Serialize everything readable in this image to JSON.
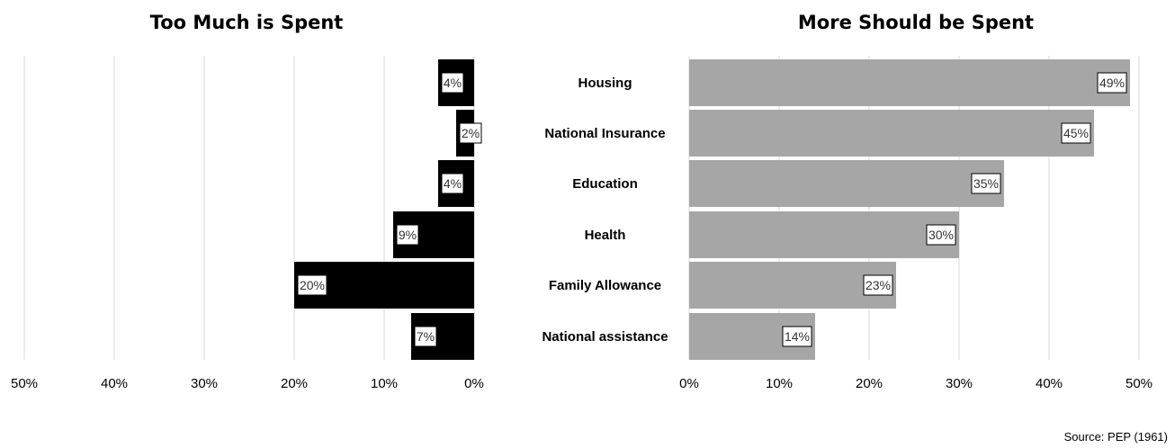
{
  "chart_data": [
    {
      "type": "bar",
      "orientation": "horizontal",
      "direction": "right-to-left",
      "title": "Too Much is Spent",
      "categories": [
        "Housing",
        "National Insurance",
        "Education",
        "Health",
        "Family Allowance",
        "National assistance"
      ],
      "values": [
        4,
        2,
        4,
        9,
        20,
        7
      ],
      "data_labels": [
        "4%",
        "2%",
        "4%",
        "9%",
        "20%",
        "7%"
      ],
      "xlim": [
        0,
        50
      ],
      "ticks": [
        "0%",
        "10%",
        "20%",
        "30%",
        "40%",
        "50%"
      ],
      "bar_color": "#000000",
      "grid": true
    },
    {
      "type": "bar",
      "orientation": "horizontal",
      "direction": "left-to-right",
      "title": "More Should be Spent",
      "categories": [
        "Housing",
        "National Insurance",
        "Education",
        "Health",
        "Family Allowance",
        "National assistance"
      ],
      "values": [
        49,
        45,
        35,
        30,
        23,
        14
      ],
      "data_labels": [
        "49%",
        "45%",
        "35%",
        "30%",
        "23%",
        "14%"
      ],
      "xlim": [
        0,
        50
      ],
      "ticks": [
        "0%",
        "10%",
        "20%",
        "30%",
        "40%",
        "50%"
      ],
      "bar_color": "#a6a6a6",
      "grid": true
    }
  ],
  "source": "Source: PEP (1961)"
}
